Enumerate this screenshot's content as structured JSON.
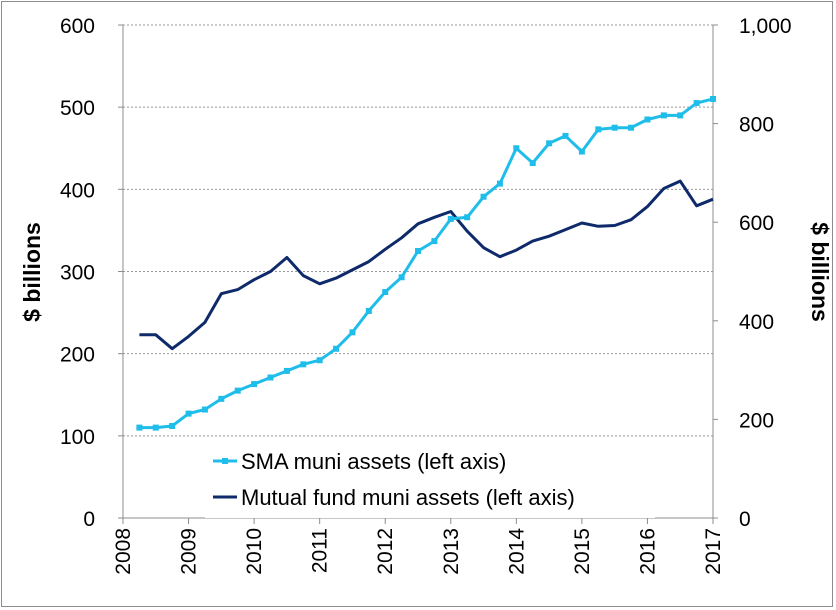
{
  "chart_data": {
    "type": "line",
    "ylabel_left": "$ billions",
    "ylabel_right": "$ billions",
    "ylim_left": [
      0,
      600
    ],
    "ylim_right": [
      0,
      1000
    ],
    "yticks_left": [
      "0",
      "100",
      "200",
      "300",
      "400",
      "500",
      "600"
    ],
    "yticks_right": [
      "0",
      "200",
      "400",
      "600",
      "800",
      "1,000"
    ],
    "xlim": [
      2008,
      2017
    ],
    "xticks": [
      "2008",
      "2009",
      "2010",
      "2011",
      "2012",
      "2013",
      "2014",
      "2015",
      "2016",
      "2017"
    ],
    "grid": "horizontal dotted",
    "legend_position": "bottom-center",
    "series": [
      {
        "name": "SMA muni assets (left axis)",
        "color": "#1fbde9",
        "marker": "square",
        "x": [
          2008.25,
          2008.5,
          2008.75,
          2009.0,
          2009.25,
          2009.5,
          2009.75,
          2010.0,
          2010.25,
          2010.5,
          2010.75,
          2011.0,
          2011.25,
          2011.5,
          2011.75,
          2012.0,
          2012.25,
          2012.5,
          2012.75,
          2013.0,
          2013.25,
          2013.5,
          2013.75,
          2014.0,
          2014.25,
          2014.5,
          2014.75,
          2015.0,
          2015.25,
          2015.5,
          2015.75,
          2016.0,
          2016.25,
          2016.5,
          2016.75,
          2017.0
        ],
        "values": [
          110,
          110,
          112,
          127,
          132,
          145,
          155,
          163,
          171,
          179,
          187,
          192,
          206,
          226,
          252,
          275,
          293,
          325,
          337,
          364,
          366,
          391,
          407,
          450,
          432,
          456,
          465,
          446,
          473,
          475,
          475,
          485,
          490,
          490,
          505,
          510
        ]
      },
      {
        "name": "Mutual fund muni assets (left axis)",
        "color": "#0e2a6b",
        "marker": "none",
        "x": [
          2008.25,
          2008.5,
          2008.75,
          2009.0,
          2009.25,
          2009.5,
          2009.75,
          2010.0,
          2010.25,
          2010.5,
          2010.75,
          2011.0,
          2011.25,
          2011.5,
          2011.75,
          2012.0,
          2012.25,
          2012.5,
          2012.75,
          2013.0,
          2013.25,
          2013.5,
          2013.75,
          2014.0,
          2014.25,
          2014.5,
          2014.75,
          2015.0,
          2015.25,
          2015.5,
          2015.75,
          2016.0,
          2016.25,
          2016.5,
          2016.75,
          2017.0
        ],
        "values": [
          223,
          223,
          206,
          221,
          238,
          273,
          278,
          290,
          300,
          317,
          295,
          285,
          292,
          302,
          312,
          327,
          341,
          358,
          366,
          373,
          349,
          329,
          318,
          326,
          337,
          343,
          351,
          359,
          355,
          356,
          363,
          379,
          401,
          410,
          380,
          388
        ]
      }
    ]
  }
}
